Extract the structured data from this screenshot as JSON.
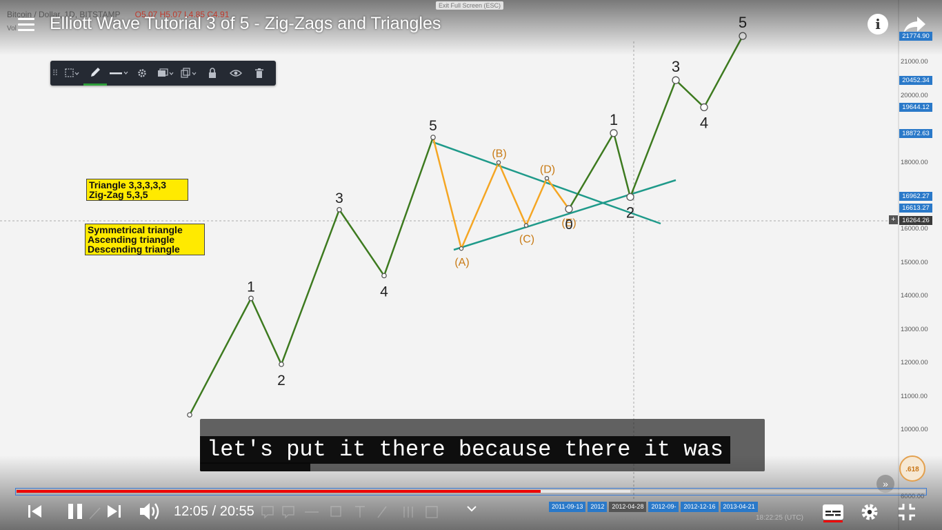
{
  "video": {
    "title": "Elliott Wave Tutorial 3 of 5 - Zig-Zags and Triangles",
    "caption_line": "let's put it there because there it was",
    "current_time": "12:05",
    "duration": "20:55",
    "time_display": "12:05 / 20:55",
    "progress_fraction": 0.577,
    "buffered_fraction": 0.675
  },
  "chart_header": {
    "symbol_line": "Bitcoin / Dollar, 1D, BITSTAMP",
    "ohlc": "O5.07 H5.07 L4.85 C4.91",
    "vol_label": "Vol",
    "exit_fullscreen": "Exit Full Screen (ESC)"
  },
  "toolbar": {
    "icons": [
      "grip-icon",
      "line-style-icon",
      "pencil-icon",
      "line-width-icon",
      "gear-icon",
      "layer-icon",
      "clone-icon",
      "lock-icon",
      "eye-icon",
      "trash-icon"
    ]
  },
  "legend": {
    "box1": [
      "Triangle 3,3,3,3,3",
      "Zig-Zag 5,3,5"
    ],
    "box2": [
      "Symmetrical triangle",
      "Ascending triangle",
      "Descending triangle"
    ]
  },
  "price_axis": {
    "ticks": [
      "21000.00",
      "20000.00",
      "18000.00",
      "16000.00",
      "15000.00",
      "14000.00",
      "13000.00",
      "12000.00",
      "11000.00",
      "10000.00",
      "6000.00"
    ],
    "badges": [
      "21774.90",
      "20452.34",
      "19644.12",
      "18872.63",
      "16962.27",
      "16613.27"
    ],
    "current_price": "16264.26"
  },
  "time_axis": {
    "dates": [
      "2011-09-13",
      "2012",
      "2012-04-28",
      "2012-09-",
      "2012-12-16",
      "2013-04-21"
    ]
  },
  "chart_data": {
    "type": "line",
    "impulse_wave": {
      "labels": [
        "1",
        "2",
        "3",
        "4",
        "5"
      ],
      "points": [
        {
          "label": "",
          "value": 10450
        },
        {
          "label": "1",
          "value": 13930
        },
        {
          "label": "2",
          "value": 11960
        },
        {
          "label": "3",
          "value": 16580
        },
        {
          "label": "4",
          "value": 14610
        },
        {
          "label": "5",
          "value": 18740
        }
      ]
    },
    "triangle_wave": {
      "labels": [
        "(A)",
        "(B)",
        "(C)",
        "(D)",
        "(E)"
      ],
      "points": [
        {
          "label": "5",
          "value": 18740
        },
        {
          "label": "(A)",
          "value": 15420
        },
        {
          "label": "(B)",
          "value": 17990
        },
        {
          "label": "(C)",
          "value": 16110
        },
        {
          "label": "(D)",
          "value": 17520
        },
        {
          "label": "(E)",
          "value": 16600
        }
      ]
    },
    "post_triangle_wave": {
      "labels": [
        "1",
        "2",
        "3",
        "4",
        "5"
      ],
      "points": [
        {
          "label": "",
          "value": 16600
        },
        {
          "label": "1",
          "value": 18870
        },
        {
          "label": "2",
          "value": 16960
        },
        {
          "label": "3",
          "value": 20450
        },
        {
          "label": "4",
          "value": 19640
        },
        {
          "label": "5",
          "value": 21770
        }
      ]
    },
    "colors": {
      "impulse": "#3d7a1f",
      "triangle": "#f5a623",
      "trendline": "#1f9a8a",
      "triangle_label": "#c87a14"
    }
  },
  "controls": {
    "icons": [
      "previous-icon",
      "pause-icon",
      "next-icon",
      "volume-icon",
      "chevron-down-icon",
      "subtitles-icon",
      "settings-icon",
      "exit-fullscreen-icon"
    ],
    "logo_text": ".618",
    "clock": "18:22:25 (UTC)"
  },
  "top_icons": {
    "info": "i"
  }
}
